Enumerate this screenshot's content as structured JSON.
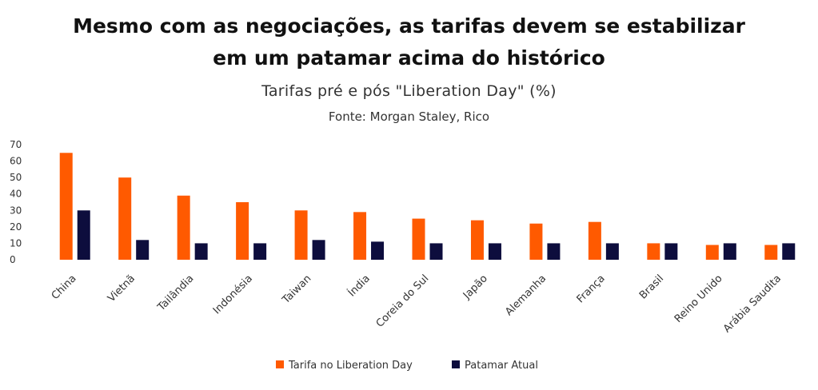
{
  "chart_data": {
    "type": "bar",
    "title_line1": "Mesmo com as negociações, as tarifas devem se estabilizar",
    "title_line2": "em um patamar acima do histórico",
    "subtitle": "Tarifas pré e pós \"Liberation Day\" (%)",
    "source": "Fonte: Morgan Staley, Rico",
    "categories": [
      "China",
      "Vietnã",
      "Tailândia",
      "Indonésia",
      "Taiwan",
      "Índia",
      "Coreia do Sul",
      "Japão",
      "Alemanha",
      "França",
      "Brasil",
      "Reino Unido",
      "Arábia Saudita"
    ],
    "series": [
      {
        "name": "Tarifa no Liberation Day",
        "color": "#ff5a00",
        "values": [
          65,
          50,
          39,
          35,
          30,
          29,
          25,
          24,
          22,
          23,
          10,
          9,
          9
        ]
      },
      {
        "name": "Patamar Atual",
        "color": "#0d0d3d",
        "values": [
          30,
          12,
          10,
          10,
          12,
          11,
          10,
          10,
          10,
          10,
          10,
          10,
          10
        ]
      }
    ],
    "ylim": [
      0,
      70
    ],
    "yticks": [
      0,
      10,
      20,
      30,
      40,
      50,
      60,
      70
    ],
    "grid": false,
    "legend_position": "bottom"
  }
}
